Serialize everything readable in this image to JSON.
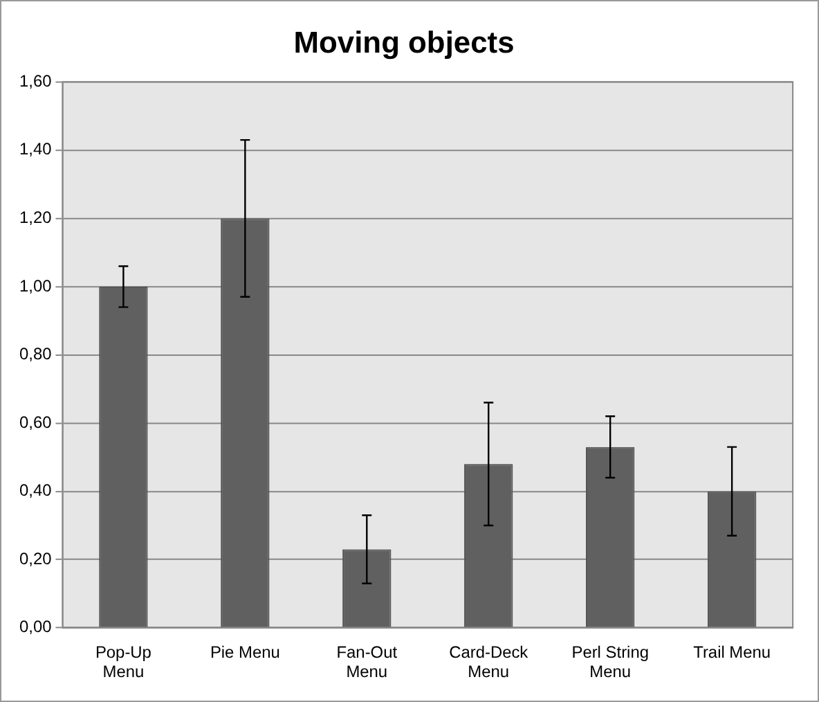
{
  "chart_data": {
    "type": "bar",
    "title": "Moving objects",
    "categories": [
      "Pop-Up Menu",
      "Pie Menu",
      "Fan-Out Menu",
      "Card-Deck Menu",
      "Perl String Menu",
      "Trail Menu"
    ],
    "values": [
      1.0,
      1.2,
      0.23,
      0.48,
      0.53,
      0.4
    ],
    "errors": [
      0.06,
      0.23,
      0.1,
      0.18,
      0.09,
      0.13
    ],
    "color": "#606060",
    "ylim": [
      0,
      1.6
    ],
    "yticks": [
      {
        "value": 0,
        "label": "0,00"
      },
      {
        "value": 0.2,
        "label": "0,20"
      },
      {
        "value": 0.4,
        "label": "0,40"
      },
      {
        "value": 0.6,
        "label": "0,60"
      },
      {
        "value": 0.8,
        "label": "0,80"
      },
      {
        "value": 1,
        "label": "1,00"
      },
      {
        "value": 1.2,
        "label": "1,20"
      },
      {
        "value": 1.4,
        "label": "1,40"
      },
      {
        "value": 1.6,
        "label": "1,60"
      }
    ],
    "grid": "y",
    "legend": false
  }
}
